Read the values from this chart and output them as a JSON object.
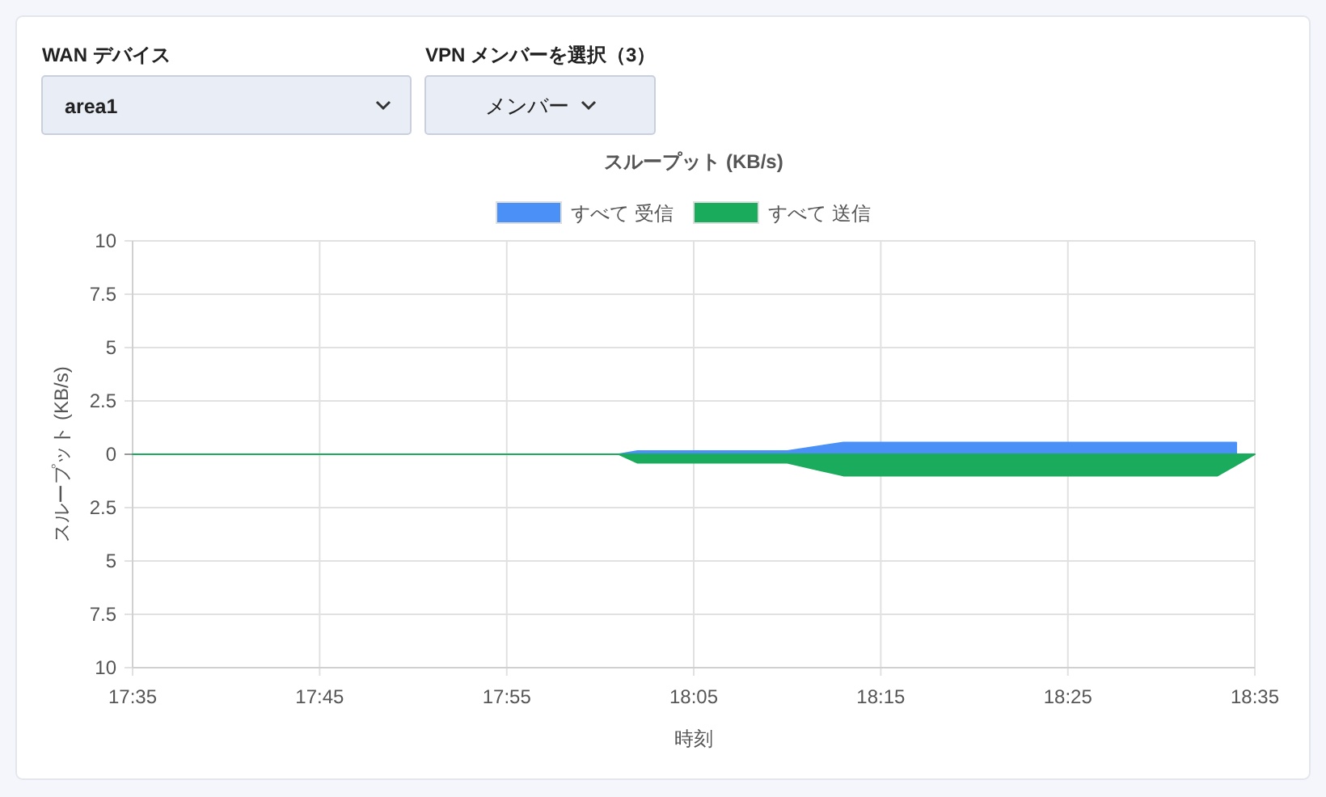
{
  "chart_data": {
    "type": "area",
    "title": "スループット (KB/s)",
    "xlabel": "時刻",
    "ylabel": "スループット (KB/s)",
    "annotations": [
      "WAN デバイス",
      "area1",
      "VPN メンバーを選択（3）",
      "メンバー"
    ],
    "series": [
      {
        "name": "すべて 受信",
        "color": "#4a90f7",
        "x": [
          17.5833,
          18.0167,
          18.0333,
          18.1667,
          18.2167,
          18.5667
        ],
        "values": [
          0,
          0,
          0.15,
          0.15,
          0.55,
          0.55
        ]
      },
      {
        "name": "すべて 送信",
        "color": "#1aab5c",
        "x": [
          17.5833,
          18.0167,
          18.0333,
          18.1667,
          18.2167,
          18.55,
          18.5833
        ],
        "values": [
          0,
          0,
          -0.4,
          -0.4,
          -1,
          -1,
          0
        ]
      }
    ],
    "xlim": [
      17.5833,
      18.5833
    ],
    "xticks": [
      {
        "value": 17.5833,
        "label": "17:35"
      },
      {
        "value": 17.75,
        "label": "17:45"
      },
      {
        "value": 17.9167,
        "label": "17:55"
      },
      {
        "value": 18.0833,
        "label": "18:05"
      },
      {
        "value": 18.25,
        "label": "18:15"
      },
      {
        "value": 18.4167,
        "label": "18:25"
      },
      {
        "value": 18.5833,
        "label": "18:35"
      }
    ],
    "ylim": [
      -10,
      10
    ],
    "yticks": [
      10,
      7.5,
      5,
      2.5,
      0,
      {
        "value": -2.5,
        "label": "2.5"
      },
      {
        "value": -5,
        "label": "5"
      },
      {
        "value": -7.5,
        "label": "7.5"
      },
      {
        "value": -10,
        "label": "10"
      }
    ],
    "grid": true,
    "legend": "top"
  }
}
